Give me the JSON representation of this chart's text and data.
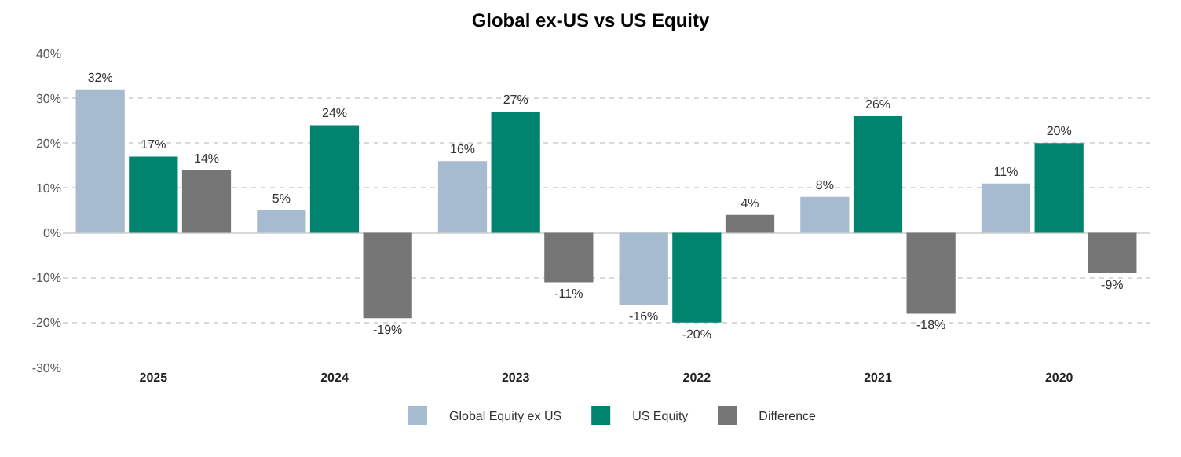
{
  "chart_data": {
    "type": "bar",
    "title": "Global ex-US vs US Equity",
    "categories": [
      "2025",
      "2024",
      "2023",
      "2022",
      "2021",
      "2020"
    ],
    "series": [
      {
        "name": "Global Equity ex US",
        "color": "#a6bbd0",
        "values": [
          32,
          5,
          16,
          -16,
          8,
          11
        ],
        "value_labels": [
          "32%",
          "5%",
          "16%",
          "-16%",
          "8%",
          "11%"
        ]
      },
      {
        "name": "US Equity",
        "color": "#008470",
        "values": [
          17,
          24,
          27,
          -20,
          26,
          20
        ],
        "value_labels": [
          "17%",
          "24%",
          "27%",
          "-20%",
          "26%",
          "20%"
        ]
      },
      {
        "name": "Difference",
        "color": "#767676",
        "values": [
          14,
          -19,
          -11,
          4,
          -18,
          -9
        ],
        "value_labels": [
          "14%",
          "-19%",
          "-11%",
          "4%",
          "-18%",
          "-9%"
        ]
      }
    ],
    "ylim": [
      -30,
      40
    ],
    "yticks": [
      {
        "value": -30,
        "label": "-30%"
      },
      {
        "value": -20,
        "label": "-20%"
      },
      {
        "value": -10,
        "label": "-10%"
      },
      {
        "value": 0,
        "label": "0%"
      },
      {
        "value": 10,
        "label": "10%"
      },
      {
        "value": 20,
        "label": "20%"
      },
      {
        "value": 30,
        "label": "30%"
      },
      {
        "value": 40,
        "label": "40%"
      }
    ],
    "grid": "y",
    "legend": "bottom"
  }
}
